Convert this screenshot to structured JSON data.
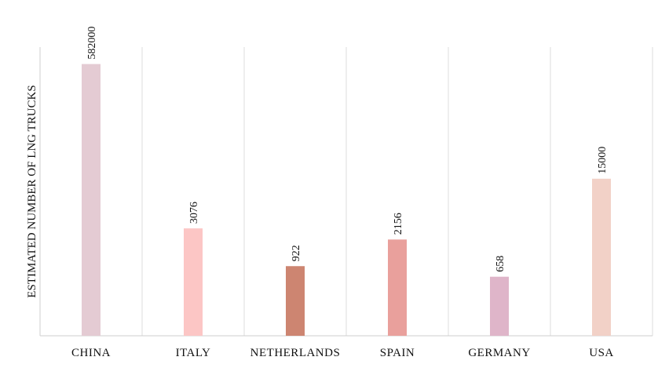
{
  "chart_data": {
    "type": "bar",
    "scale": "log",
    "title": "",
    "xlabel": "",
    "ylabel": "ESTIMATED NUMBER OF LNG TRUCKS",
    "categories": [
      "CHINA",
      "ITALY",
      "NETHERLANDS",
      "SPAIN",
      "GERMANY",
      "USA"
    ],
    "values": [
      582000,
      3076,
      922,
      2156,
      658,
      15000
    ],
    "value_labels": [
      "582000",
      "3076",
      "922",
      "2156",
      "658",
      "15000"
    ],
    "colors": [
      "#e4cbd3",
      "#fcc6c5",
      "#cd8571",
      "#e9a09c",
      "#dfb5c9",
      "#f2d1c7"
    ],
    "ylim": [
      100,
      1000000
    ],
    "grid": "vertical separators",
    "legend": "none"
  }
}
